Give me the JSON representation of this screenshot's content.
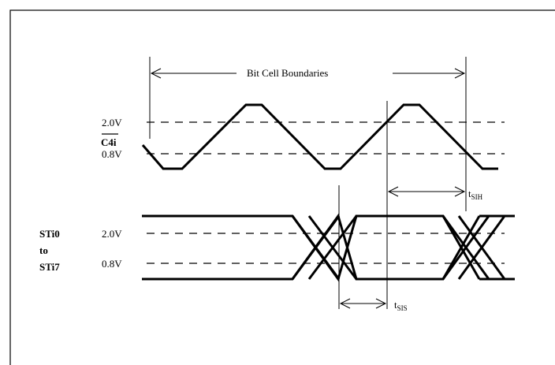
{
  "diagram": {
    "boundaries_label": "Bit Cell Boundaries",
    "c4i_label": "C4i",
    "c4i_high_level": "2.0V",
    "c4i_low_level": "0.8V",
    "sti_label_line1": "STi0",
    "sti_label_line2": "to",
    "sti_label_line3": "STi7",
    "sti_high_level": "2.0V",
    "sti_low_level": "0.8V",
    "t_sih_main": "t",
    "t_sih_sub": "SIH",
    "t_sis_main": "t",
    "t_sis_sub": "SIS"
  }
}
